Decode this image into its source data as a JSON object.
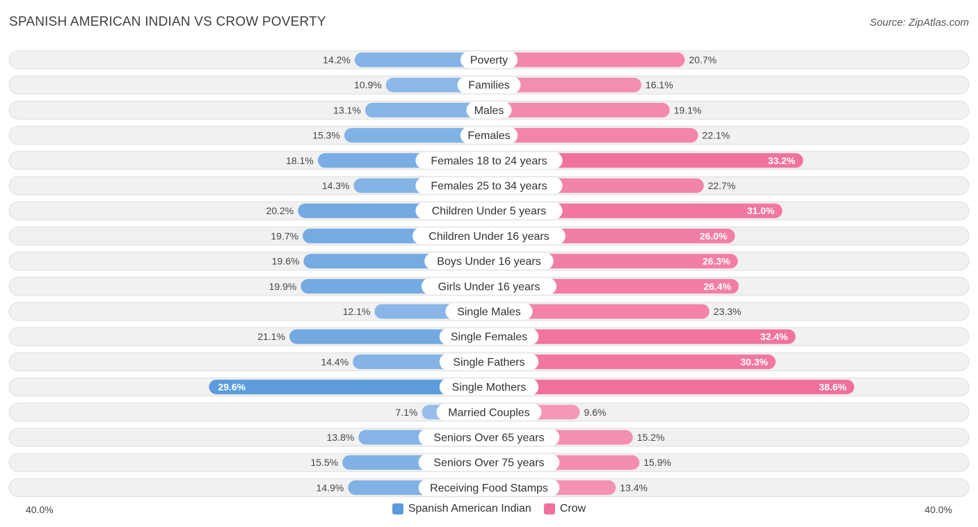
{
  "title": "SPANISH AMERICAN INDIAN VS CROW POVERTY",
  "source": "Source: ZipAtlas.com",
  "colors": {
    "left": "#5b9bdc",
    "right": "#f06f9b"
  },
  "chart_data": {
    "type": "bar",
    "orientation": "horizontal-diverging",
    "title": "SPANISH AMERICAN INDIAN VS CROW POVERTY",
    "axis_min_label": "40.0%",
    "axis_max_label": "40.0%",
    "xlim": [
      -40,
      40
    ],
    "categories": [
      "Poverty",
      "Families",
      "Males",
      "Females",
      "Females 18 to 24 years",
      "Females 25 to 34 years",
      "Children Under 5 years",
      "Children Under 16 years",
      "Boys Under 16 years",
      "Girls Under 16 years",
      "Single Males",
      "Single Females",
      "Single Fathers",
      "Single Mothers",
      "Married Couples",
      "Seniors Over 65 years",
      "Seniors Over 75 years",
      "Receiving Food Stamps"
    ],
    "series": [
      {
        "name": "Spanish American Indian",
        "values": [
          14.2,
          10.9,
          13.1,
          15.3,
          18.1,
          14.3,
          20.2,
          19.7,
          19.6,
          19.9,
          12.1,
          21.1,
          14.4,
          29.6,
          7.1,
          13.8,
          15.5,
          14.9
        ],
        "labels": [
          "14.2%",
          "10.9%",
          "13.1%",
          "15.3%",
          "18.1%",
          "14.3%",
          "20.2%",
          "19.7%",
          "19.6%",
          "19.9%",
          "12.1%",
          "21.1%",
          "14.4%",
          "29.6%",
          "7.1%",
          "13.8%",
          "15.5%",
          "14.9%"
        ]
      },
      {
        "name": "Crow",
        "values": [
          20.7,
          16.1,
          19.1,
          22.1,
          33.2,
          22.7,
          31.0,
          26.0,
          26.3,
          26.4,
          23.3,
          32.4,
          30.3,
          38.6,
          9.6,
          15.2,
          15.9,
          13.4
        ],
        "labels": [
          "20.7%",
          "16.1%",
          "19.1%",
          "22.1%",
          "33.2%",
          "22.7%",
          "31.0%",
          "26.0%",
          "26.3%",
          "26.4%",
          "23.3%",
          "32.4%",
          "30.3%",
          "38.6%",
          "9.6%",
          "15.2%",
          "15.9%",
          "13.4%"
        ]
      }
    ],
    "legend": [
      "Spanish American Indian",
      "Crow"
    ]
  }
}
